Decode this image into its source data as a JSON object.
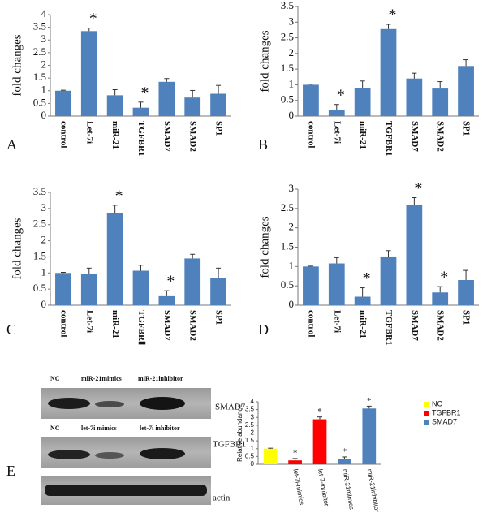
{
  "chart_data": [
    {
      "type": "bar",
      "label": "A",
      "ylabel": "fold changes",
      "color": "#4f81bd",
      "categories": [
        "control",
        "Let-7i",
        "miR-21",
        "TGFBR1",
        "SMAD7",
        "SMAD2",
        "SP1"
      ],
      "values": [
        1.0,
        3.35,
        0.82,
        0.33,
        1.35,
        0.73,
        0.88
      ],
      "errors": [
        0.02,
        0.12,
        0.22,
        0.22,
        0.13,
        0.28,
        0.33
      ],
      "annotations": [
        null,
        "*",
        null,
        "*",
        null,
        null,
        null
      ],
      "ylim": [
        0,
        4
      ],
      "yticks": [
        0,
        0.5,
        1,
        1.5,
        2,
        2.5,
        3,
        3.5,
        4
      ]
    },
    {
      "type": "bar",
      "label": "B",
      "ylabel": "fold changes",
      "color": "#4f81bd",
      "categories": [
        "control",
        "Let-7i",
        "miR-21",
        "TGFBR1",
        "SMAD7",
        "SMAD2",
        "SP1"
      ],
      "values": [
        1.0,
        0.2,
        0.9,
        2.78,
        1.2,
        0.88,
        1.6
      ],
      "errors": [
        0.02,
        0.17,
        0.22,
        0.15,
        0.17,
        0.22,
        0.2
      ],
      "annotations": [
        null,
        "*",
        null,
        "*",
        null,
        null,
        null
      ],
      "ylim": [
        0,
        3.5
      ],
      "yticks": [
        0,
        0.5,
        1,
        1.5,
        2,
        2.5,
        3,
        3.5
      ]
    },
    {
      "type": "bar",
      "label": "C",
      "ylabel": "fold changes",
      "color": "#4f81bd",
      "categories": [
        "control",
        "Let-7i",
        "miR-21",
        "TGFBRⅡ",
        "SMAD7",
        "SMAD2",
        "SP1"
      ],
      "values": [
        1.0,
        0.98,
        2.85,
        1.07,
        0.28,
        1.45,
        0.85
      ],
      "errors": [
        0.02,
        0.17,
        0.25,
        0.17,
        0.17,
        0.13,
        0.3
      ],
      "annotations": [
        null,
        null,
        "*",
        null,
        "*",
        null,
        null
      ],
      "ylim": [
        0,
        3.5
      ],
      "yticks": [
        0,
        0.5,
        1,
        1.5,
        2,
        2.5,
        3,
        3.5
      ]
    },
    {
      "type": "bar",
      "label": "D",
      "ylabel": "fold changes",
      "color": "#4f81bd",
      "categories": [
        "control",
        "Let-7i",
        "miR-21",
        "TGFBR1",
        "SMAD7",
        "SMAD2",
        "SP1"
      ],
      "values": [
        1.0,
        1.08,
        0.22,
        1.26,
        2.58,
        0.33,
        0.65
      ],
      "errors": [
        0.01,
        0.15,
        0.23,
        0.15,
        0.2,
        0.15,
        0.25
      ],
      "annotations": [
        null,
        null,
        "*",
        null,
        "*",
        "*",
        null
      ],
      "ylim": [
        0,
        3
      ],
      "yticks": [
        0,
        0.5,
        1,
        1.5,
        2,
        2.5,
        3
      ]
    },
    {
      "type": "bar",
      "ylabel": "Relative abundance",
      "categories": [
        null,
        "let-7i-mimics",
        "let-7-inhibitor",
        "miR-21mimics",
        "miR-21inhibitor"
      ],
      "series": [
        {
          "name": "NC",
          "color": "#ffff00",
          "values": [
            1.0,
            null,
            null,
            null,
            null
          ],
          "errors": [
            0.03,
            null,
            null,
            null,
            null
          ]
        },
        {
          "name": "TGFBR1",
          "color": "#ff0000",
          "values": [
            null,
            0.25,
            2.88,
            null,
            null
          ],
          "errors": [
            null,
            0.12,
            0.15,
            null,
            null
          ]
        },
        {
          "name": "SMAD7",
          "color": "#4f81bd",
          "values": [
            null,
            null,
            null,
            0.32,
            3.57
          ],
          "errors": [
            null,
            null,
            null,
            0.15,
            0.15
          ]
        }
      ],
      "annotations": [
        null,
        "*",
        "*",
        "*",
        "*"
      ],
      "ylim": [
        0,
        4
      ],
      "yticks": [
        0,
        0.5,
        1,
        1.5,
        2,
        2.5,
        3,
        3.5,
        4
      ]
    }
  ],
  "blots": {
    "panel_label": "E",
    "row1_header": [
      "NC",
      "miR-21mimics",
      "miR-21inhibitor"
    ],
    "row1_target": "SMAD7",
    "row2_header": [
      "NC",
      "let-7i mimics",
      "let-7i inhibitor"
    ],
    "row2_target": "TGFBR1",
    "loading_control": "actin"
  }
}
